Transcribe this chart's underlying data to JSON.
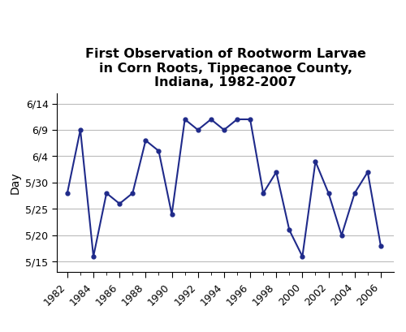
{
  "title": "First Observation of Rootworm Larvae\nin Corn Roots, Tippecanoe County,\nIndiana, 1982-2007",
  "ylabel": "Day",
  "years": [
    1982,
    1983,
    1984,
    1985,
    1986,
    1987,
    1988,
    1989,
    1990,
    1991,
    1992,
    1993,
    1994,
    1995,
    1996,
    1997,
    1998,
    1999,
    2000,
    2001,
    2002,
    2003,
    2004,
    2005,
    2006
  ],
  "values_doy": [
    148,
    160,
    136,
    148,
    146,
    148,
    158,
    156,
    144,
    162,
    160,
    162,
    160,
    162,
    162,
    148,
    152,
    141,
    136,
    154,
    148,
    140,
    148,
    152,
    138
  ],
  "line_color": "#1f2a8a",
  "marker": "o",
  "marker_size": 3.5,
  "ytick_labels": [
    "5/15",
    "5/20",
    "5/25",
    "5/30",
    "6/4",
    "6/9",
    "6/14"
  ],
  "ytick_values": [
    135,
    140,
    145,
    150,
    155,
    160,
    165
  ],
  "ylim": [
    133,
    167
  ],
  "xlim": [
    1981.2,
    2007.0
  ],
  "xtick_values": [
    1982,
    1984,
    1986,
    1988,
    1990,
    1992,
    1994,
    1996,
    1998,
    2000,
    2002,
    2004,
    2006
  ],
  "title_fontsize": 11.5,
  "axis_label_fontsize": 10,
  "tick_fontsize": 9,
  "bg_color": "#ffffff",
  "grid_color": "#bbbbbb"
}
